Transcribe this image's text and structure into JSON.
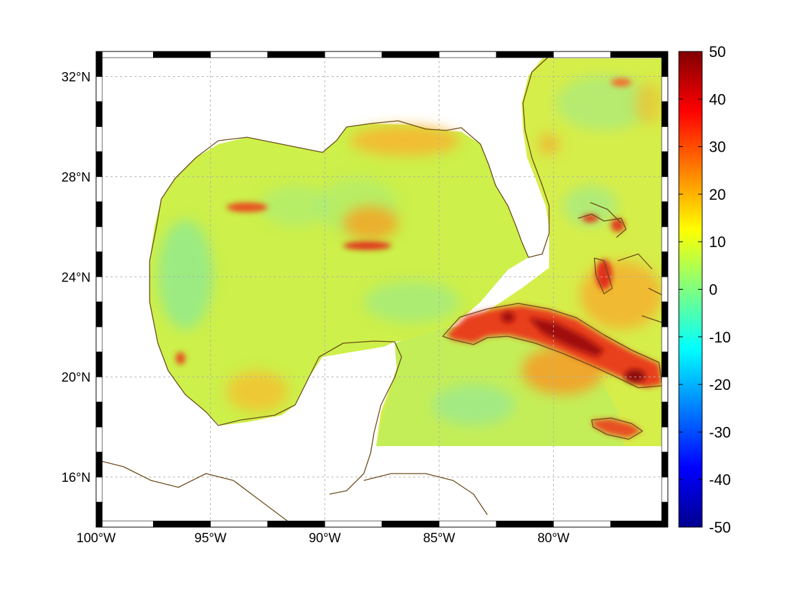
{
  "map": {
    "extent": {
      "lon_min": -100,
      "lon_max": -75,
      "lat_min": 14,
      "lat_max": 33
    },
    "x_ticks": [
      {
        "value": -100,
        "label": "100°W"
      },
      {
        "value": -95,
        "label": "95°W"
      },
      {
        "value": -90,
        "label": "90°W"
      },
      {
        "value": -85,
        "label": "85°W"
      },
      {
        "value": -80,
        "label": "80°W"
      }
    ],
    "y_ticks": [
      {
        "value": 32,
        "label": "32°N"
      },
      {
        "value": 28,
        "label": "28°N"
      },
      {
        "value": 24,
        "label": "24°N"
      },
      {
        "value": 20,
        "label": "20°N"
      },
      {
        "value": 16,
        "label": "16°N"
      }
    ],
    "grid": true,
    "frame": "black-white alternating border",
    "coastline_color": "#6b4a1a",
    "colormap": "jet"
  },
  "colorbar": {
    "min": -50,
    "max": 50,
    "ticks": [
      {
        "value": 50,
        "label": "50"
      },
      {
        "value": 40,
        "label": "40"
      },
      {
        "value": 30,
        "label": "30"
      },
      {
        "value": 20,
        "label": "20"
      },
      {
        "value": 10,
        "label": "10"
      },
      {
        "value": 0,
        "label": "0"
      },
      {
        "value": -10,
        "label": "-10"
      },
      {
        "value": -20,
        "label": "-20"
      },
      {
        "value": -30,
        "label": "-30"
      },
      {
        "value": -40,
        "label": "-40"
      },
      {
        "value": -50,
        "label": "-50"
      }
    ]
  }
}
